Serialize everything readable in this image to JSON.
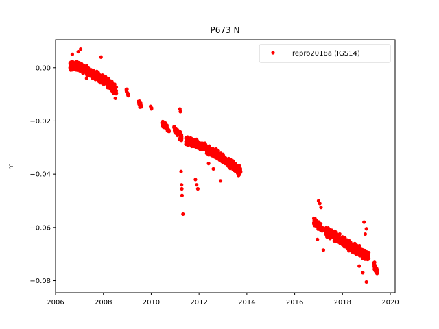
{
  "chart_data": {
    "type": "scatter",
    "title": "P673 N",
    "xlabel": "",
    "ylabel": "m",
    "xlim": [
      2006.0,
      2020.2
    ],
    "ylim": [
      -0.0845,
      0.0105
    ],
    "xticks": [
      2006,
      2008,
      2010,
      2012,
      2014,
      2016,
      2018,
      2020
    ],
    "xtick_labels": [
      "2006",
      "2008",
      "2010",
      "2012",
      "2014",
      "2016",
      "2018",
      "2020"
    ],
    "yticks": [
      0.0,
      -0.02,
      -0.04,
      -0.06,
      -0.08
    ],
    "ytick_labels": [
      "0.00",
      "−0.02",
      "−0.04",
      "−0.06",
      "−0.08"
    ],
    "legend": {
      "placement": "upper right"
    },
    "series": [
      {
        "name": "repro2018a (IGS14)",
        "color": "#ff0000",
        "marker": "circle",
        "segments": [
          {
            "x0": 2006.6,
            "x1": 2007.0,
            "y0": 0.0008,
            "y1": 0.0006,
            "n": 120,
            "spread": 0.0022
          },
          {
            "x0": 2007.0,
            "x1": 2007.6,
            "y0": 0.0004,
            "y1": -0.0025,
            "n": 150,
            "spread": 0.0022
          },
          {
            "x0": 2007.6,
            "x1": 2008.1,
            "y0": -0.0025,
            "y1": -0.0048,
            "n": 120,
            "spread": 0.0022
          },
          {
            "x0": 2008.1,
            "x1": 2008.55,
            "y0": -0.005,
            "y1": -0.0088,
            "n": 110,
            "spread": 0.0025
          },
          {
            "x0": 2008.95,
            "x1": 2009.05,
            "y0": -0.0085,
            "y1": -0.0098,
            "n": 10,
            "spread": 0.0012
          },
          {
            "x0": 2009.45,
            "x1": 2009.6,
            "y0": -0.0125,
            "y1": -0.0148,
            "n": 14,
            "spread": 0.0015
          },
          {
            "x0": 2009.97,
            "x1": 2010.03,
            "y0": -0.0145,
            "y1": -0.016,
            "n": 5,
            "spread": 0.0008
          },
          {
            "x0": 2010.45,
            "x1": 2010.75,
            "y0": -0.021,
            "y1": -0.0235,
            "n": 40,
            "spread": 0.0016
          },
          {
            "x0": 2010.95,
            "x1": 2011.28,
            "y0": -0.023,
            "y1": -0.0265,
            "n": 55,
            "spread": 0.0022
          },
          {
            "x0": 2011.45,
            "x1": 2012.3,
            "y0": -0.0275,
            "y1": -0.03,
            "n": 260,
            "spread": 0.0022
          },
          {
            "x0": 2012.3,
            "x1": 2013.1,
            "y0": -0.0305,
            "y1": -0.0345,
            "n": 240,
            "spread": 0.0024
          },
          {
            "x0": 2013.1,
            "x1": 2013.75,
            "y0": -0.035,
            "y1": -0.039,
            "n": 220,
            "spread": 0.0024
          },
          {
            "x0": 2016.8,
            "x1": 2017.15,
            "y0": -0.0575,
            "y1": -0.0605,
            "n": 70,
            "spread": 0.0025
          },
          {
            "x0": 2017.3,
            "x1": 2017.9,
            "y0": -0.0615,
            "y1": -0.0645,
            "n": 170,
            "spread": 0.0024
          },
          {
            "x0": 2017.9,
            "x1": 2018.5,
            "y0": -0.0645,
            "y1": -0.068,
            "n": 170,
            "spread": 0.0024
          },
          {
            "x0": 2018.5,
            "x1": 2019.1,
            "y0": -0.068,
            "y1": -0.071,
            "n": 170,
            "spread": 0.0025
          },
          {
            "x0": 2019.3,
            "x1": 2019.45,
            "y0": -0.0735,
            "y1": -0.077,
            "n": 35,
            "spread": 0.0018
          }
        ],
        "points": [
          [
            2006.95,
            0.006
          ],
          [
            2007.05,
            0.007
          ],
          [
            2007.9,
            0.004
          ],
          [
            2006.7,
            0.005
          ],
          [
            2007.3,
            -0.004
          ],
          [
            2008.5,
            -0.0115
          ],
          [
            2011.2,
            -0.0155
          ],
          [
            2011.22,
            -0.0165
          ],
          [
            2011.25,
            -0.039
          ],
          [
            2011.27,
            -0.044
          ],
          [
            2011.28,
            -0.0455
          ],
          [
            2011.29,
            -0.048
          ],
          [
            2011.33,
            -0.055
          ],
          [
            2011.85,
            -0.042
          ],
          [
            2011.9,
            -0.044
          ],
          [
            2011.95,
            -0.0455
          ],
          [
            2012.4,
            -0.036
          ],
          [
            2012.6,
            -0.038
          ],
          [
            2012.9,
            -0.0425
          ],
          [
            2017.0,
            -0.05
          ],
          [
            2017.05,
            -0.051
          ],
          [
            2017.1,
            -0.0525
          ],
          [
            2016.95,
            -0.0645
          ],
          [
            2017.2,
            -0.0685
          ],
          [
            2018.9,
            -0.058
          ],
          [
            2019.0,
            -0.0605
          ],
          [
            2018.95,
            -0.0625
          ],
          [
            2018.85,
            -0.077
          ],
          [
            2019.0,
            -0.0805
          ],
          [
            2018.7,
            -0.0745
          ]
        ]
      }
    ]
  }
}
